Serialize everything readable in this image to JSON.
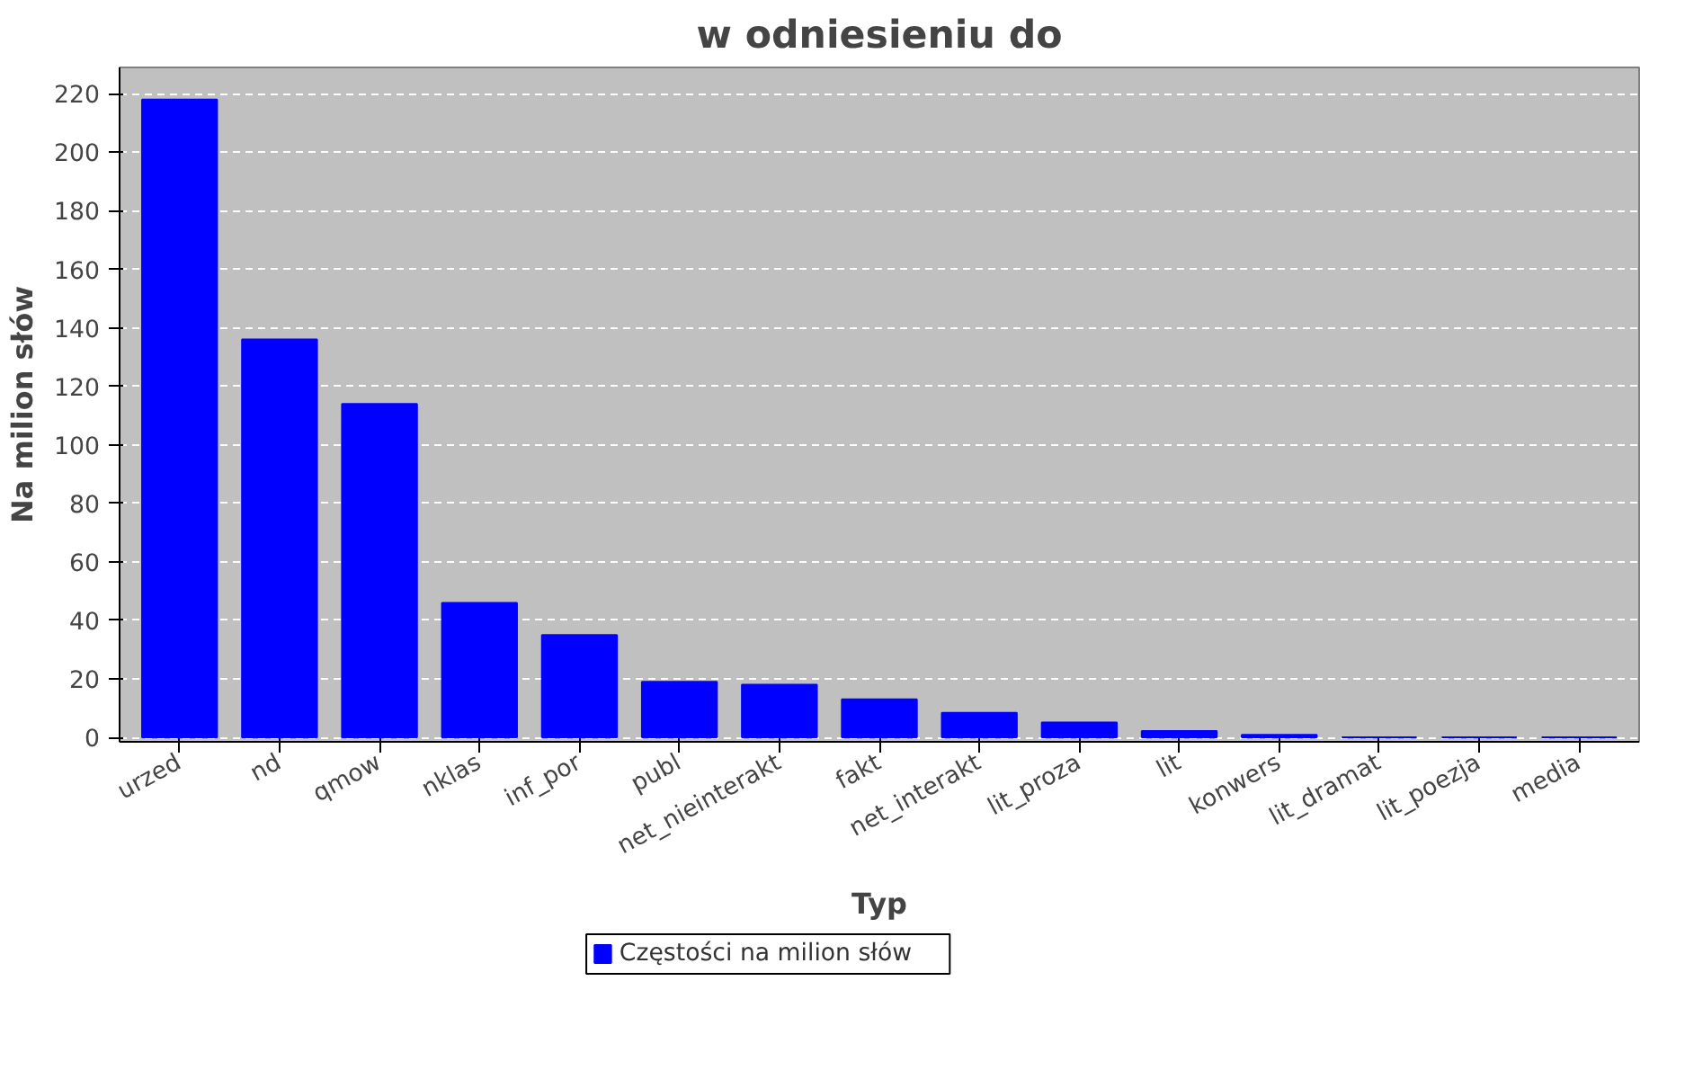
{
  "chart_data": {
    "type": "bar",
    "title": "w odniesieniu do",
    "xlabel": "Typ",
    "ylabel": "Na milion słów",
    "categories": [
      "urzed",
      "nd",
      "qmow",
      "nklas",
      "inf_por",
      "publ",
      "net_nieinterakt",
      "fakt",
      "net_interakt",
      "lit_proza",
      "lit",
      "konwers",
      "lit_dramat",
      "lit_poezja",
      "media"
    ],
    "series": [
      {
        "name": "Częstości na milion słów",
        "color": "#0000ff",
        "values": [
          218,
          136,
          114,
          46,
          35,
          19,
          18,
          13,
          8.4,
          5.1,
          2.2,
          0.9,
          0,
          0,
          0
        ]
      }
    ],
    "ylim": [
      -1.5,
      229
    ],
    "yticks": [
      0,
      20,
      40,
      60,
      80,
      100,
      120,
      140,
      160,
      180,
      200,
      220
    ],
    "grid": "y",
    "legend": "bottom"
  }
}
